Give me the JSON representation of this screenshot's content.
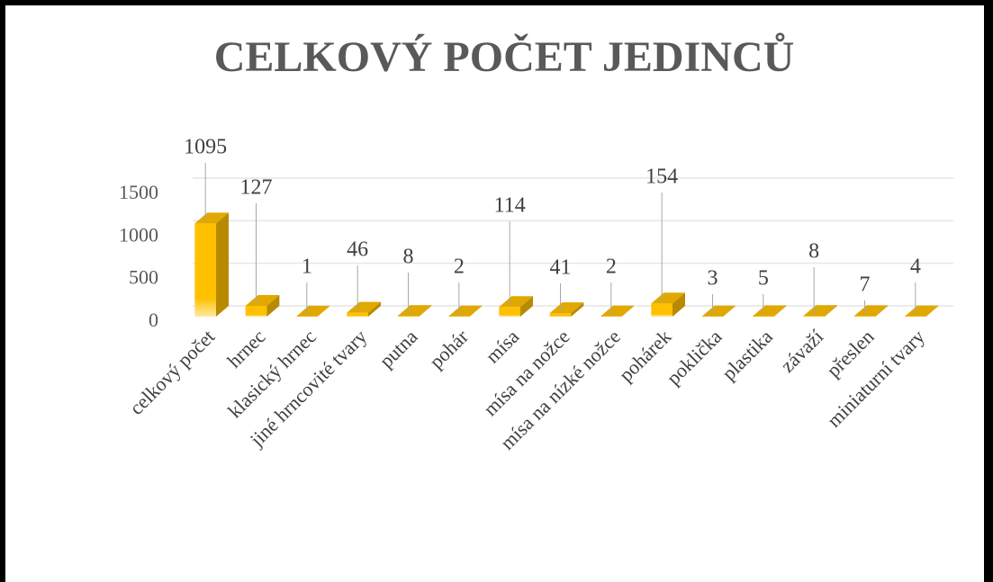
{
  "chart_data": {
    "type": "bar3d",
    "title": "CELKOVÝ POČET JEDINCŮ",
    "categories": [
      "celkový počet",
      "hrnec",
      "klasický hrnec",
      "jiné hrncovité tvary",
      "putna",
      "pohár",
      "mísa",
      "mísa na nožce",
      "mísa na nízké nožce",
      "pohárek",
      "poklička",
      "plastika",
      "závaží",
      "přeslen",
      "miniaturní tvary"
    ],
    "values": [
      1095,
      127,
      1,
      46,
      8,
      2,
      114,
      41,
      2,
      154,
      3,
      5,
      8,
      7,
      4
    ],
    "color": "#ffc000",
    "ylim": [
      0,
      1500
    ],
    "yticks": [
      0,
      500,
      1000,
      1500
    ],
    "grid": true
  }
}
